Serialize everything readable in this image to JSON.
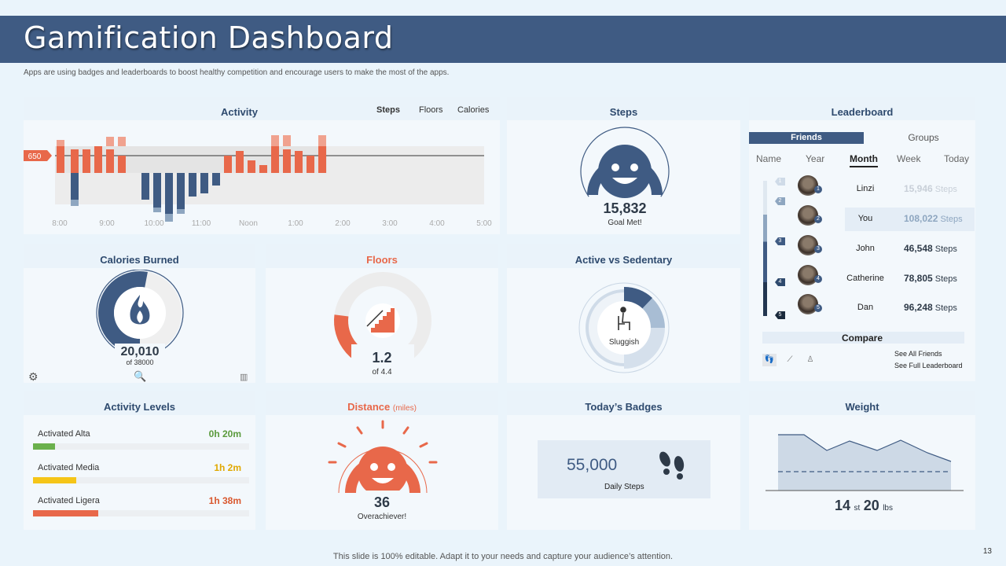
{
  "header": {
    "title": "Gamification Dashboard",
    "subtitle": "Apps are using badges and leaderboards to boost healthy competition and encourage users to make  the most of the apps."
  },
  "activity": {
    "title": "Activity",
    "tabs": [
      "Steps",
      "Floors",
      "Calories"
    ],
    "active_tab": "Steps",
    "marker_label": "650",
    "time_labels": [
      "8:00",
      "9:00",
      "10:00",
      "11:00",
      "Noon",
      "1:00",
      "2:00",
      "3:00",
      "4:00",
      "5:00"
    ]
  },
  "steps": {
    "title": "Steps",
    "value": "15,832",
    "caption": "Goal Met!",
    "progress_fraction": 0.95
  },
  "leaderboard": {
    "title": "Leaderboard",
    "tabs": [
      "Friends",
      "Groups"
    ],
    "periods": [
      "Name",
      "Year",
      "Month",
      "Week",
      "Today"
    ],
    "active_period": "Month",
    "rows": [
      {
        "rank": "1",
        "name": "Linzi",
        "steps": "15,946",
        "unit": "Steps"
      },
      {
        "rank": "2",
        "name": "You",
        "steps": "108,022",
        "unit": "Steps"
      },
      {
        "rank": "3",
        "name": "John",
        "steps": "46,548",
        "unit": "Steps"
      },
      {
        "rank": "4",
        "name": "Catherine",
        "steps": "78,805",
        "unit": "Steps"
      },
      {
        "rank": "5",
        "name": "Dan",
        "steps": "96,248",
        "unit": "Steps"
      }
    ],
    "compare_label": "Compare",
    "links": [
      "See All Friends",
      "See Full Leaderboard"
    ]
  },
  "calories": {
    "title": "Calories Burned",
    "value": "20,010",
    "caption": "of 38000",
    "progress_fraction": 0.53
  },
  "floors": {
    "title": "Floors",
    "value": "1.2",
    "caption": "of 4.4",
    "progress_fraction": 0.27
  },
  "active_vs_sedentary": {
    "title": "Active vs Sedentary",
    "caption": "Sluggish"
  },
  "activity_levels": {
    "title": "Activity Levels",
    "items": [
      {
        "label": "Activated Alta",
        "value": "0h 20m",
        "color": "#6ab04c",
        "fraction": 0.1
      },
      {
        "label": "Activated Media",
        "value": "1h 2m",
        "color": "#f5c518",
        "fraction": 0.2
      },
      {
        "label": "Activated Ligera",
        "value": "1h 38m",
        "color": "#e8684a",
        "fraction": 0.3
      }
    ]
  },
  "distance": {
    "title": "Distance",
    "unit": "(miles)",
    "value": "36",
    "caption": "Overachiever!"
  },
  "badges": {
    "title": "Today’s Badges",
    "value": "55,000",
    "caption": "Daily Steps"
  },
  "weight": {
    "title": "Weight",
    "stones": "14",
    "st_unit": "st",
    "pounds": "20",
    "lbs_unit": "lbs"
  },
  "footer": {
    "note": "This slide is 100% editable. Adapt it to your needs and capture your audience’s attention.",
    "page": "13"
  },
  "colors": {
    "navy": "#3f5b83",
    "orange": "#e8684a",
    "light": "#eaf3fa"
  }
}
